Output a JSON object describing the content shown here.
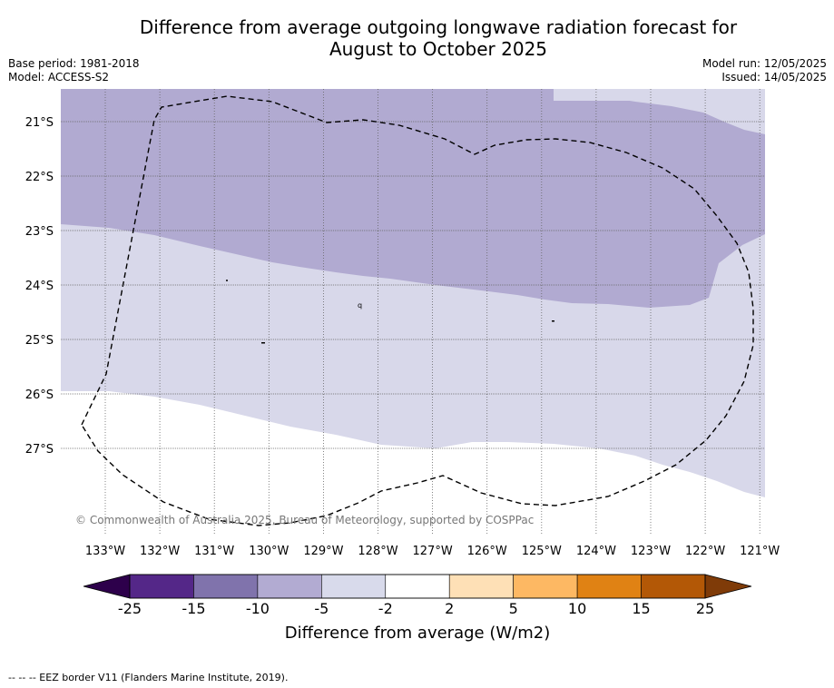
{
  "header": {
    "title_line1": "Difference from average outgoing longwave radiation forecast for",
    "title_line2": "August to October 2025",
    "base_period": "Base period: 1981-2018",
    "model": "Model: ACCESS-S2",
    "model_run": "Model run: 12/05/2025",
    "issued": "Issued: 14/05/2025"
  },
  "map": {
    "longitude_labels": [
      "133°W",
      "132°W",
      "131°W",
      "130°W",
      "129°W",
      "128°W",
      "127°W",
      "126°W",
      "125°W",
      "124°W",
      "123°W",
      "122°W",
      "121°W"
    ],
    "latitude_labels": [
      "21°S",
      "22°S",
      "23°S",
      "24°S",
      "25°S",
      "26°S",
      "27°S"
    ],
    "copyright": "© Commonwealth of Australia 2025, Bureau of Meteorology, supported by COSPPac",
    "island_mark": "q",
    "colors": {
      "band_-10_-5": "#b1aad1",
      "band_-5_-2": "#d8d8ea",
      "band_-2_2": "#ffffff",
      "eez_border": "#000000",
      "grid": "#666666"
    }
  },
  "colorbar": {
    "label": "Difference from average (W/m2)",
    "ticks": [
      "-25",
      "-15",
      "-10",
      "-5",
      "-2",
      "2",
      "5",
      "10",
      "15",
      "25"
    ],
    "under_color": "#2d004b",
    "over_color": "#7f3b08",
    "bin_colors": [
      "#542788",
      "#8073ac",
      "#b2abd2",
      "#d8daeb",
      "#ffffff",
      "#fee0b6",
      "#fdb863",
      "#e08214",
      "#b35806"
    ]
  },
  "legend": {
    "eez_note": "--  --  -- EEZ border V11 (Flanders Marine Institute, 2019)."
  }
}
